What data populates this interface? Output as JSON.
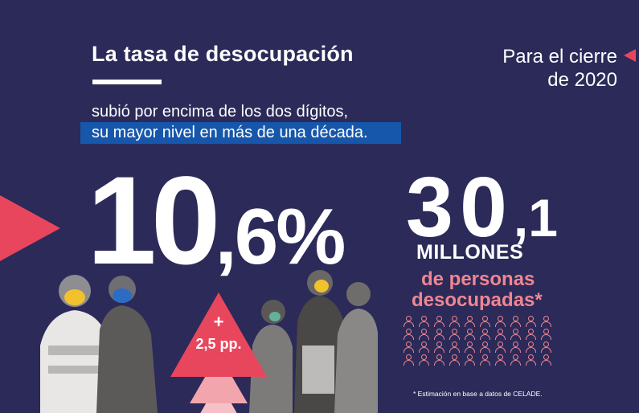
{
  "title": "La tasa de desocupación",
  "period_line1": "Para el cierre",
  "period_line2": "de 2020",
  "subtitle_line1": "subió por encima de los dos dígitos,",
  "subtitle_line2": "su mayor nivel en más de una década.",
  "rate_integer": "10",
  "rate_decimal": ",6%",
  "increase_sign": "+",
  "increase_value": "2,5 pp.",
  "unemployed_integer": "30",
  "unemployed_decimal": ",1",
  "unemployed_unit": "MILLONES",
  "unemployed_desc_line1": "de personas",
  "unemployed_desc_line2": "desocupadas*",
  "footnote": "* Estimación en base a datos de CELADE.",
  "people_icon": "person-outline-icon",
  "people_icon_count": 40,
  "colors": {
    "background": "#2b2a59",
    "accent_red": "#e8465d",
    "accent_pink": "#f08692",
    "highlight_blue": "#1657ab"
  }
}
